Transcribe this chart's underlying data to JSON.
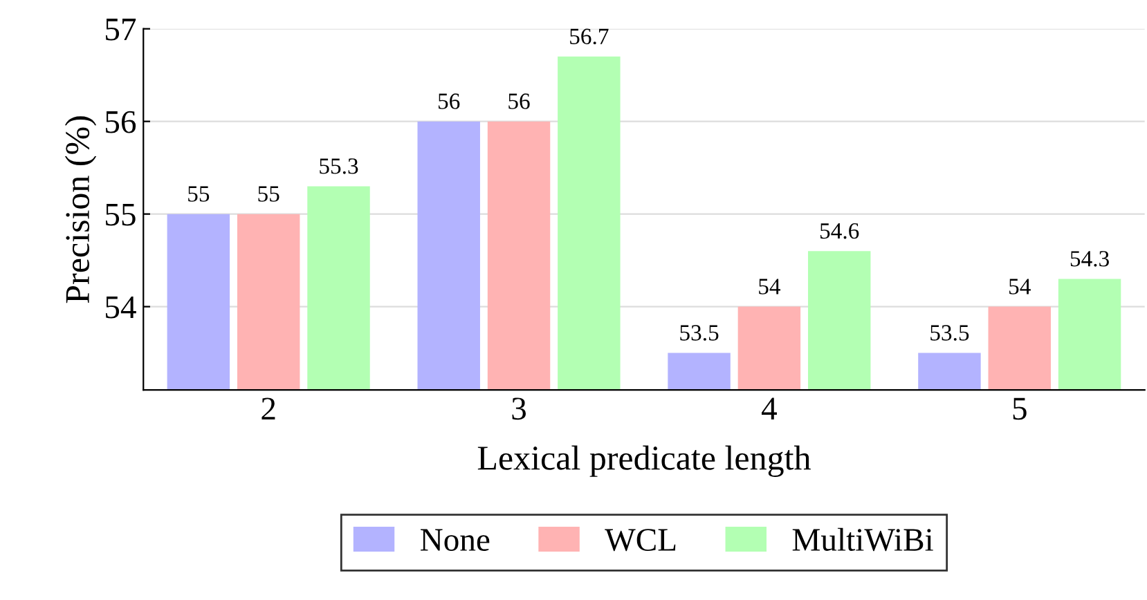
{
  "chart_data": {
    "type": "bar",
    "xlabel": "Lexical predicate length",
    "ylabel": "Precision (%)",
    "categories": [
      "2",
      "3",
      "4",
      "5"
    ],
    "series": [
      {
        "name": "None",
        "color": "#b3b3ff",
        "values": [
          55,
          56,
          53.5,
          53.5
        ]
      },
      {
        "name": "WCL",
        "color": "#ffb3b3",
        "values": [
          55,
          56,
          54,
          54
        ]
      },
      {
        "name": "MultiWiBi",
        "color": "#b3ffb3",
        "values": [
          55.3,
          56.7,
          54.6,
          54.3
        ]
      }
    ],
    "ylim": [
      53.1,
      57
    ],
    "yticks": [
      54,
      55,
      56,
      57
    ],
    "grid": "y",
    "legend": "bottom",
    "data_labels": true
  }
}
